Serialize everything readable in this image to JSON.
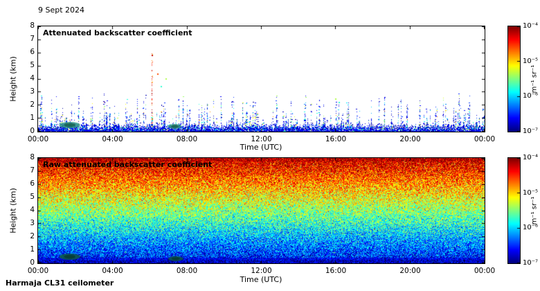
{
  "header": {
    "date": "9 Sept 2024"
  },
  "footer": {
    "instrument": "Harmaja CL31 ceilometer"
  },
  "chart_data": [
    {
      "type": "heatmap",
      "title": "Attenuated backscatter coefficient",
      "xlabel": "Time (UTC)",
      "ylabel": "Height (km)",
      "x_ticks": [
        "00:00",
        "04:00",
        "08:00",
        "12:00",
        "16:00",
        "20:00",
        "00:00"
      ],
      "y_ticks": [
        "0",
        "1",
        "2",
        "3",
        "4",
        "5",
        "6",
        "7",
        "8"
      ],
      "xlim_hours": [
        0,
        24
      ],
      "ylim_km": [
        0,
        8
      ],
      "colorbar": {
        "label": "m⁻¹ sr⁻¹",
        "ticks": [
          "10⁻⁴",
          "10⁻⁵",
          "10⁻⁶",
          "10⁻⁷"
        ],
        "scale": "log",
        "colormap": "jet",
        "range": [
          1e-07,
          0.0001
        ]
      },
      "features": {
        "background": "white (no signal)",
        "surface_noise_layer_km": [
          0,
          0.6
        ],
        "sparse_spikes": {
          "count": 320,
          "max_height_km": 2.9,
          "colors": "blue/cyan/green"
        },
        "warm_streak": {
          "hour_utc": 6.1,
          "top_km": 5.9,
          "colors": "red/orange"
        },
        "isolated_dots": [
          {
            "hour_utc": 6.1,
            "height_km": 5.8,
            "color": "red"
          },
          {
            "hour_utc": 6.4,
            "height_km": 4.35,
            "color": "orange"
          },
          {
            "hour_utc": 6.85,
            "height_km": 4.0,
            "color": "green"
          },
          {
            "hour_utc": 6.6,
            "height_km": 3.4,
            "color": "cyan"
          },
          {
            "hour_utc": 15.95,
            "height_km": 2.45,
            "color": "green"
          },
          {
            "hour_utc": 16.15,
            "height_km": 2.2,
            "color": "cyan"
          }
        ],
        "surface_blobs": [
          {
            "hour_utc": 1.7,
            "height_km": 0.5
          },
          {
            "hour_utc": 7.35,
            "height_km": 0.4
          }
        ]
      }
    },
    {
      "type": "heatmap",
      "title": "Raw attenuated backscatter coefficient",
      "xlabel": "Time (UTC)",
      "ylabel": "Height (km)",
      "x_ticks": [
        "00:00",
        "04:00",
        "08:00",
        "12:00",
        "16:00",
        "20:00",
        "00:00"
      ],
      "y_ticks": [
        "0",
        "1",
        "2",
        "3",
        "4",
        "5",
        "6",
        "7",
        "8"
      ],
      "xlim_hours": [
        0,
        24
      ],
      "ylim_km": [
        0,
        8
      ],
      "colorbar": {
        "label": "m⁻¹ sr⁻¹",
        "ticks": [
          "10⁻⁴",
          "10⁻⁵",
          "10⁻⁶",
          "10⁻⁷"
        ],
        "scale": "log",
        "colormap": "jet",
        "range": [
          1e-07,
          0.0001
        ]
      },
      "features": {
        "field": "dense speckle noise over whole panel, value decreasing with height",
        "gradient_top_to_bottom": [
          "red/orange",
          "yellow",
          "green",
          "cyan",
          "blue",
          "dark blue"
        ],
        "surface_blobs": [
          {
            "hour_utc": 1.7,
            "height_km": 0.5
          },
          {
            "hour_utc": 7.4,
            "height_km": 0.35
          }
        ]
      }
    }
  ]
}
